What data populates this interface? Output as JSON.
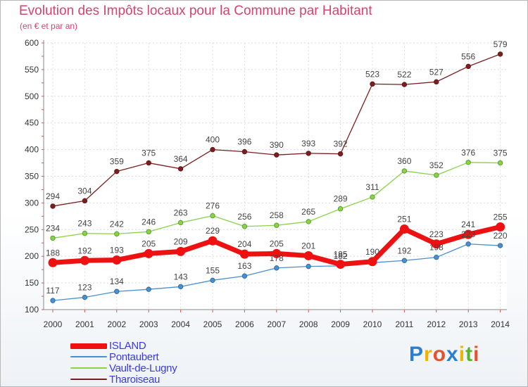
{
  "chart_data": {
    "type": "line",
    "title": "Evolution des Impôts locaux pour la Commune par Habitant",
    "subtitle": "(en € et par an)",
    "xlabel": "",
    "ylabel": "",
    "x": [
      "2000",
      "2001",
      "2002",
      "2003",
      "2004",
      "2005",
      "2006",
      "2007",
      "2008",
      "2009",
      "2010",
      "2011",
      "2012",
      "2013",
      "2014"
    ],
    "ylim": [
      100,
      600
    ],
    "yticks": [
      100,
      150,
      200,
      250,
      300,
      350,
      400,
      450,
      500,
      550,
      600
    ],
    "grid": true,
    "legend_position": "bottom-left",
    "series": [
      {
        "name": "Tharoiseau",
        "color": "#7a1f1f",
        "values": [
          294,
          304,
          359,
          375,
          364,
          400,
          396,
          390,
          393,
          392,
          523,
          522,
          527,
          556,
          579
        ]
      },
      {
        "name": "Vault-de-Lugny",
        "color": "#8ad24a",
        "values": [
          234,
          243,
          242,
          246,
          263,
          276,
          256,
          258,
          265,
          289,
          311,
          360,
          352,
          376,
          375
        ]
      },
      {
        "name": "Pontaubert",
        "color": "#4a90d0",
        "values": [
          117,
          123,
          134,
          138,
          143,
          155,
          163,
          178,
          181,
          182,
          188,
          192,
          198,
          223,
          220
        ]
      },
      {
        "name": "ISLAND",
        "color": "#ee1111",
        "values": [
          188,
          192,
          193,
          205,
          209,
          229,
          204,
          205,
          201,
          185,
          190,
          251,
          223,
          241,
          255
        ]
      }
    ],
    "point_labels": {
      "Tharoiseau": [
        "294",
        "304",
        "359",
        "375",
        "364",
        "400",
        "396",
        "390",
        "393",
        "392",
        "523",
        "522",
        "527",
        "556",
        "579"
      ],
      "Vault-de-Lugny": [
        "234",
        "243",
        "242",
        "246",
        "263",
        "276",
        "256",
        "258",
        "265",
        "289",
        "311",
        "360",
        "352",
        "376",
        "375"
      ],
      "Pontaubert": [
        "117",
        "123",
        "134",
        "",
        "143",
        "155",
        "163",
        "178",
        "",
        "182",
        "",
        "192",
        "198",
        "223",
        "220"
      ],
      "ISLAND": [
        "188",
        "192",
        "193",
        "205",
        "209",
        "229",
        "204",
        "205",
        "201",
        "185",
        "190",
        "251",
        "223",
        "241",
        "255"
      ]
    },
    "legend": [
      "ISLAND",
      "Pontaubert",
      "Vault-de-Lugny",
      "Tharoiseau"
    ]
  },
  "logo": {
    "letters": [
      "P",
      "r",
      "o",
      "x",
      "i",
      "t",
      "i"
    ],
    "colors": [
      "#2a7fd4",
      "#f0b400",
      "#e8502a",
      "#2a7fd4",
      "#f0b400",
      "#5ab52e",
      "#e8502a"
    ]
  }
}
